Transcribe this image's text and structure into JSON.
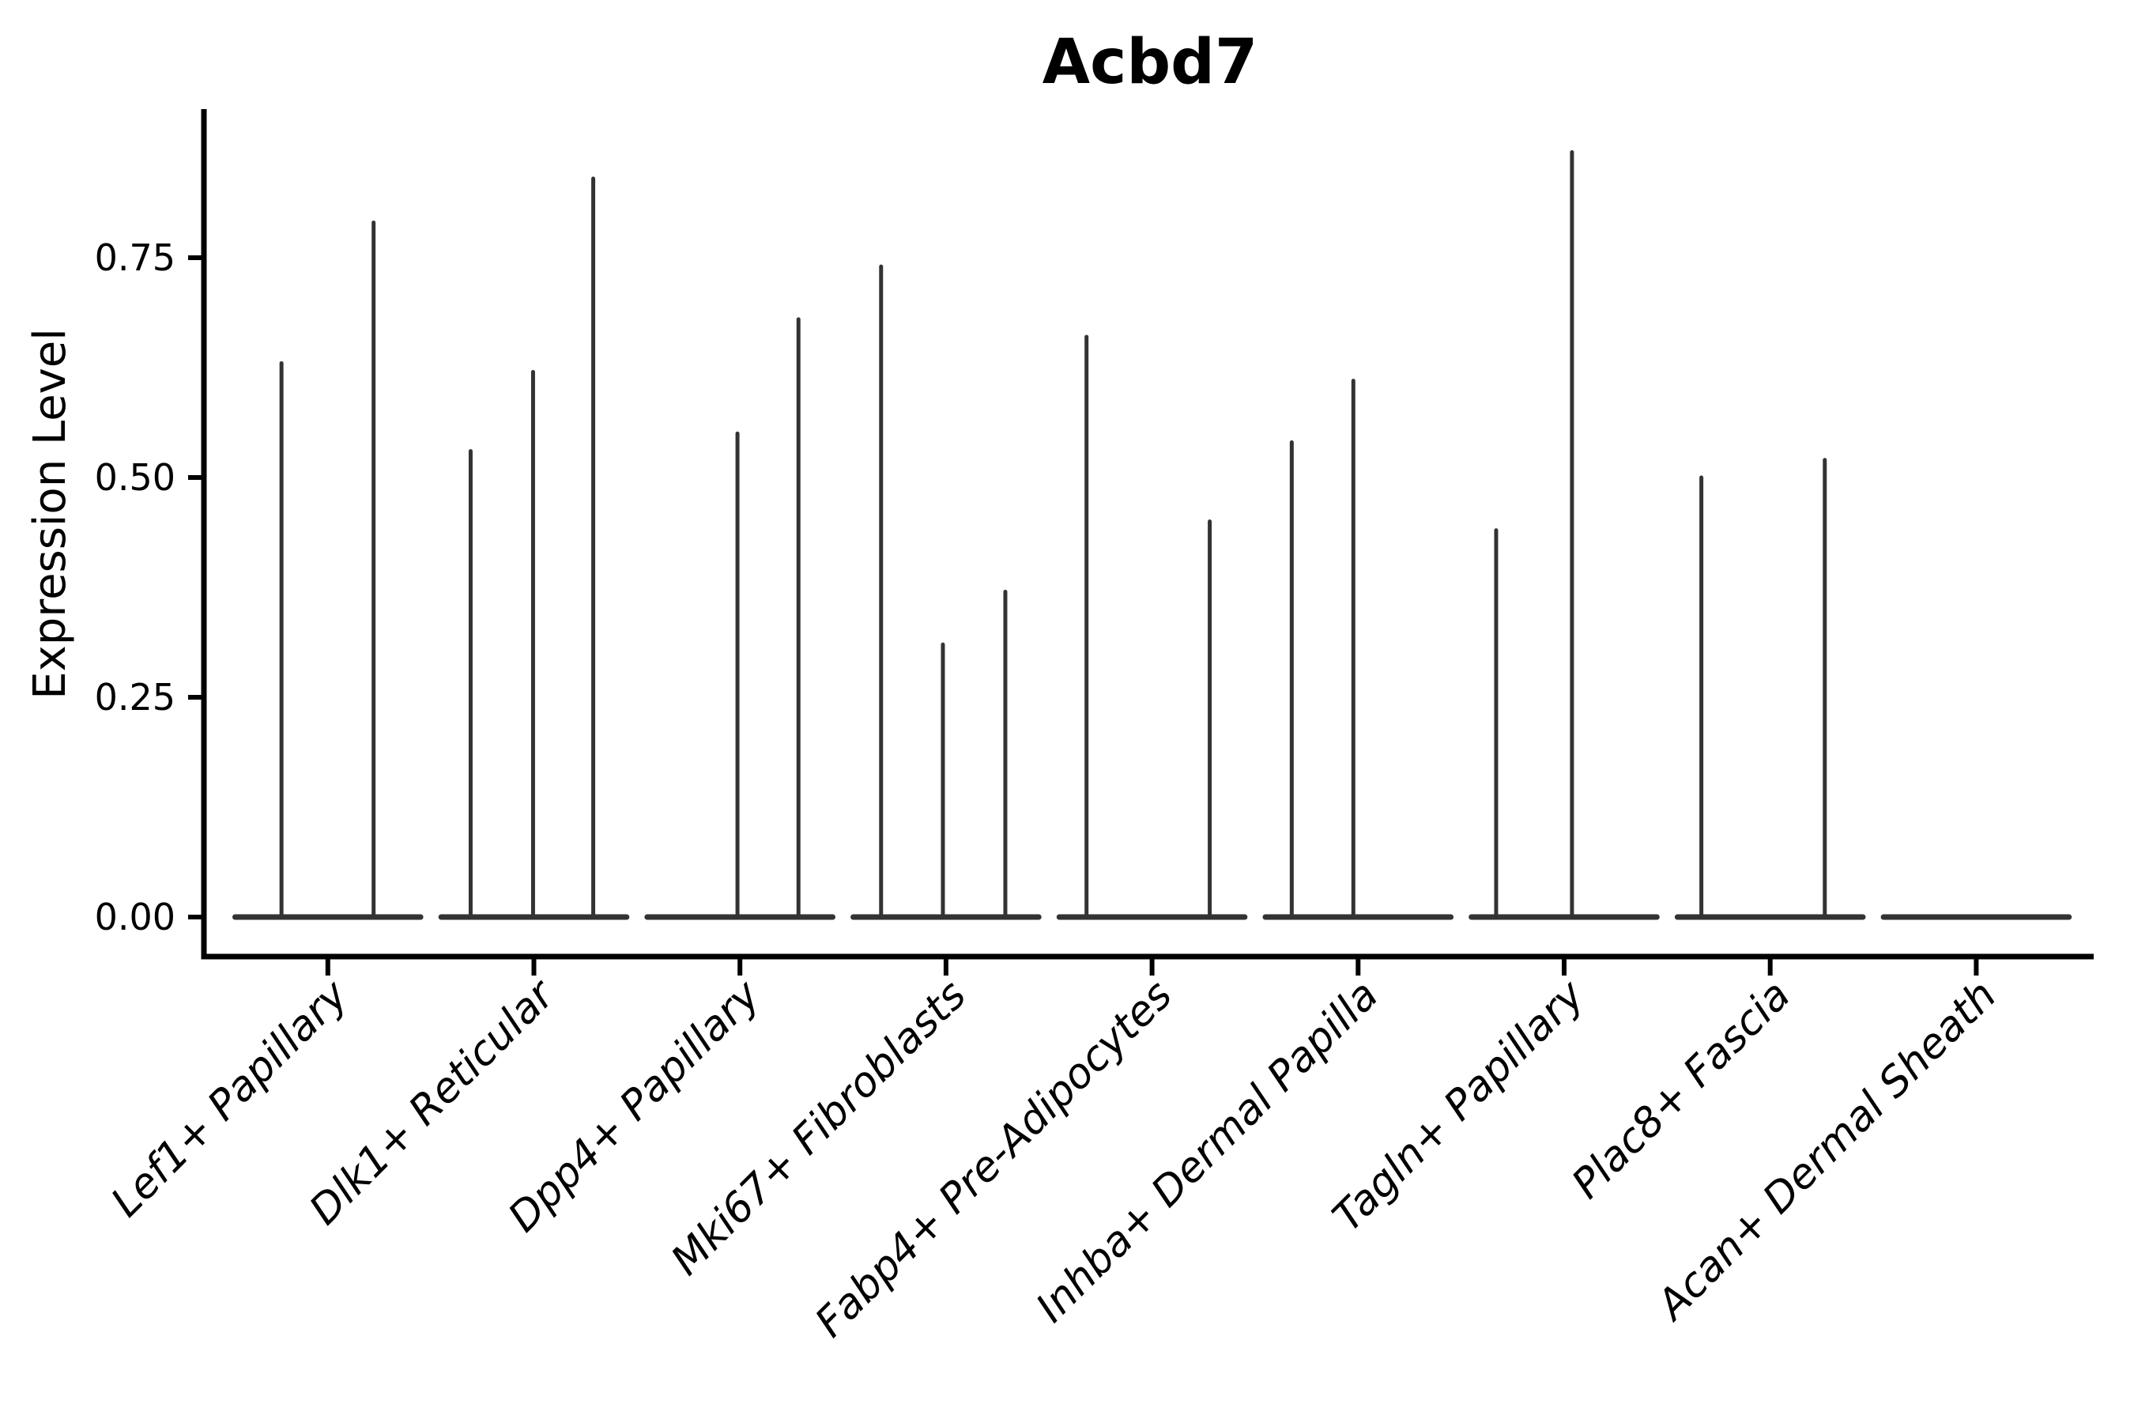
{
  "chart_data": {
    "type": "violin",
    "title": "Acbd7",
    "xlabel": "",
    "ylabel": "Expression Level",
    "ylim": [
      -0.05,
      0.92
    ],
    "grid": false,
    "legend": "none",
    "y_ticks": [
      0.0,
      0.25,
      0.5,
      0.75
    ],
    "y_tick_labels": [
      "0.00",
      "0.25",
      "0.50",
      "0.75"
    ],
    "violin_width": 0.9,
    "note": "Each category shows a collapsed violin: a flat base bar at expression 0 with thin density spikes at the listed expression values; offset is the horizontal position of each spike within the category in category-axis units",
    "categories": [
      "Lef1+ Papillary",
      "Dlk1+ Reticular",
      "Dpp4+ Papillary",
      "Mki67+ Fibroblasts",
      "Fabp4+ Pre-Adipocytes",
      "Inhba+ Dermal Papilla",
      "Tagln+ Papillary",
      "Plac8+ Fascia",
      "Acan+ Dermal Sheath"
    ],
    "series": [
      {
        "name": "Lef1+ Papillary",
        "spikes": [
          {
            "offset": -0.225,
            "value": 0.63
          },
          {
            "offset": 0.222,
            "value": 0.79
          }
        ]
      },
      {
        "name": "Dlk1+ Reticular",
        "spikes": [
          {
            "offset": -0.307,
            "value": 0.53
          },
          {
            "offset": -0.004,
            "value": 0.62
          },
          {
            "offset": 0.288,
            "value": 0.84
          }
        ]
      },
      {
        "name": "Dpp4+ Papillary",
        "spikes": [
          {
            "offset": -0.012,
            "value": 0.55
          },
          {
            "offset": 0.284,
            "value": 0.68
          }
        ]
      },
      {
        "name": "Mki67+ Fibroblasts",
        "spikes": [
          {
            "offset": -0.315,
            "value": 0.74
          },
          {
            "offset": -0.015,
            "value": 0.31
          },
          {
            "offset": 0.288,
            "value": 0.37
          }
        ]
      },
      {
        "name": "Fabp4+ Pre-Adipocytes",
        "spikes": [
          {
            "offset": -0.318,
            "value": 0.66
          },
          {
            "offset": 0.28,
            "value": 0.45
          }
        ]
      },
      {
        "name": "Inhba+ Dermal Papilla",
        "spikes": [
          {
            "offset": -0.322,
            "value": 0.54
          },
          {
            "offset": -0.023,
            "value": 0.61
          }
        ]
      },
      {
        "name": "Tagln+ Papillary",
        "spikes": [
          {
            "offset": -0.33,
            "value": 0.44
          },
          {
            "offset": 0.038,
            "value": 0.87
          }
        ]
      },
      {
        "name": "Plac8+ Fascia",
        "spikes": [
          {
            "offset": -0.334,
            "value": 0.5
          },
          {
            "offset": 0.265,
            "value": 0.52
          }
        ]
      },
      {
        "name": "Acan+ Dermal Sheath",
        "spikes": []
      }
    ]
  },
  "colors": {
    "violin_line": "#333333",
    "axis": "#000000",
    "text": "#000000",
    "background": "#ffffff"
  }
}
